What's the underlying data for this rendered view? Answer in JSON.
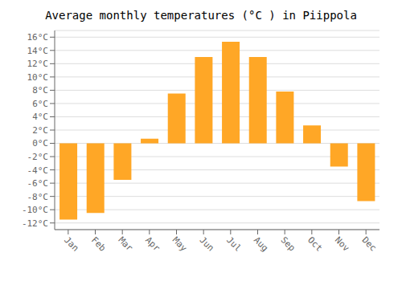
{
  "chart_data": {
    "type": "bar",
    "title": "Average monthly temperatures (°C ) in Piippola",
    "categories": [
      "Jan",
      "Feb",
      "Mar",
      "Apr",
      "May",
      "Jun",
      "Jul",
      "Aug",
      "Sep",
      "Oct",
      "Nov",
      "Dec"
    ],
    "values": [
      -11.5,
      -10.5,
      -5.5,
      0.7,
      7.5,
      13.0,
      15.3,
      13.0,
      7.8,
      2.7,
      -3.5,
      -8.7
    ],
    "color": "#FFA726",
    "ylim": [
      -13,
      17
    ],
    "yticks": [
      {
        "value": -12,
        "label": "-12°C"
      },
      {
        "value": -10,
        "label": "-10°C"
      },
      {
        "value": -8,
        "label": "-8°C"
      },
      {
        "value": -6,
        "label": "-6°C"
      },
      {
        "value": -4,
        "label": "-4°C"
      },
      {
        "value": -2,
        "label": "-2°C"
      },
      {
        "value": 0,
        "label": "0°C"
      },
      {
        "value": 2,
        "label": "2°C"
      },
      {
        "value": 4,
        "label": "4°C"
      },
      {
        "value": 6,
        "label": "6°C"
      },
      {
        "value": 8,
        "label": "8°C"
      },
      {
        "value": 10,
        "label": "10°C"
      },
      {
        "value": 12,
        "label": "12°C"
      },
      {
        "value": 14,
        "label": "14°C"
      },
      {
        "value": 16,
        "label": "16°C"
      }
    ],
    "grid": true
  }
}
